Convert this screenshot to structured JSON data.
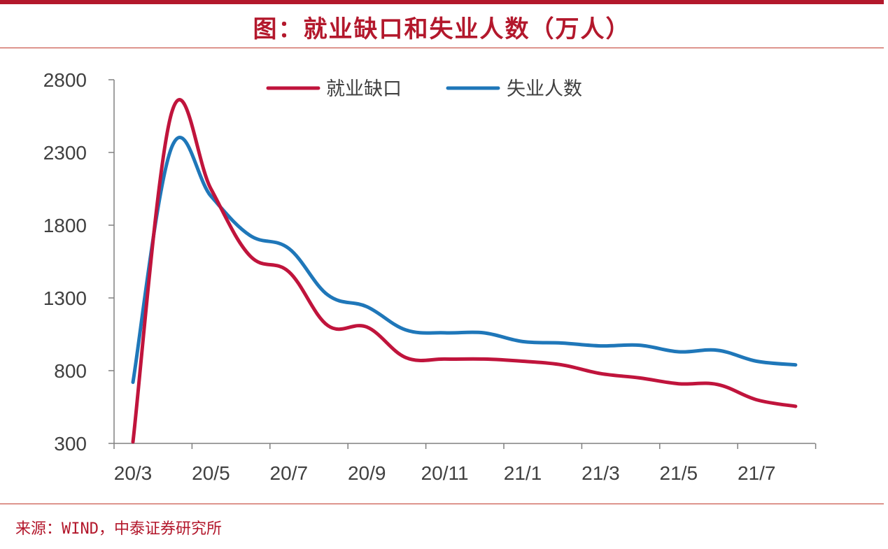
{
  "header": {
    "title": "图：就业缺口和失业人数（万人）"
  },
  "footer": {
    "source": "来源：WIND，中泰证券研究所"
  },
  "colors": {
    "accent": "#b3182c",
    "series_red": "#c0143c",
    "series_blue": "#1f77b9",
    "axis": "#808080",
    "tick_text": "#404040"
  },
  "chart_data": {
    "type": "line",
    "title": "",
    "xlabel": "",
    "ylabel": "",
    "ylim": [
      300,
      2800
    ],
    "yticks": [
      300,
      800,
      1300,
      1800,
      2300,
      2800
    ],
    "ytick_labels": [
      "300",
      "800",
      "1300",
      "1800",
      "2300",
      "2800"
    ],
    "xticks": [
      "20/3",
      "20/5",
      "20/7",
      "20/9",
      "20/11",
      "21/1",
      "21/3",
      "21/5",
      "21/7"
    ],
    "x": [
      "2020-03",
      "2020-04",
      "2020-05",
      "2020-06",
      "2020-07",
      "2020-08",
      "2020-09",
      "2020-10",
      "2020-11",
      "2020-12",
      "2021-01",
      "2021-02",
      "2021-03",
      "2021-04",
      "2021-05",
      "2021-06",
      "2021-07",
      "2021-08"
    ],
    "legend_position": "top-center",
    "grid": false,
    "series": [
      {
        "name": "就业缺口",
        "color": "#c0143c",
        "values": [
          310,
          2580,
          2050,
          1590,
          1480,
          1110,
          1100,
          890,
          880,
          880,
          865,
          840,
          780,
          750,
          710,
          705,
          600,
          555
        ]
      },
      {
        "name": "失业人数",
        "color": "#1f77b9",
        "values": [
          720,
          2340,
          2000,
          1730,
          1640,
          1320,
          1240,
          1080,
          1060,
          1060,
          1000,
          990,
          970,
          975,
          930,
          940,
          865,
          840
        ]
      }
    ]
  }
}
